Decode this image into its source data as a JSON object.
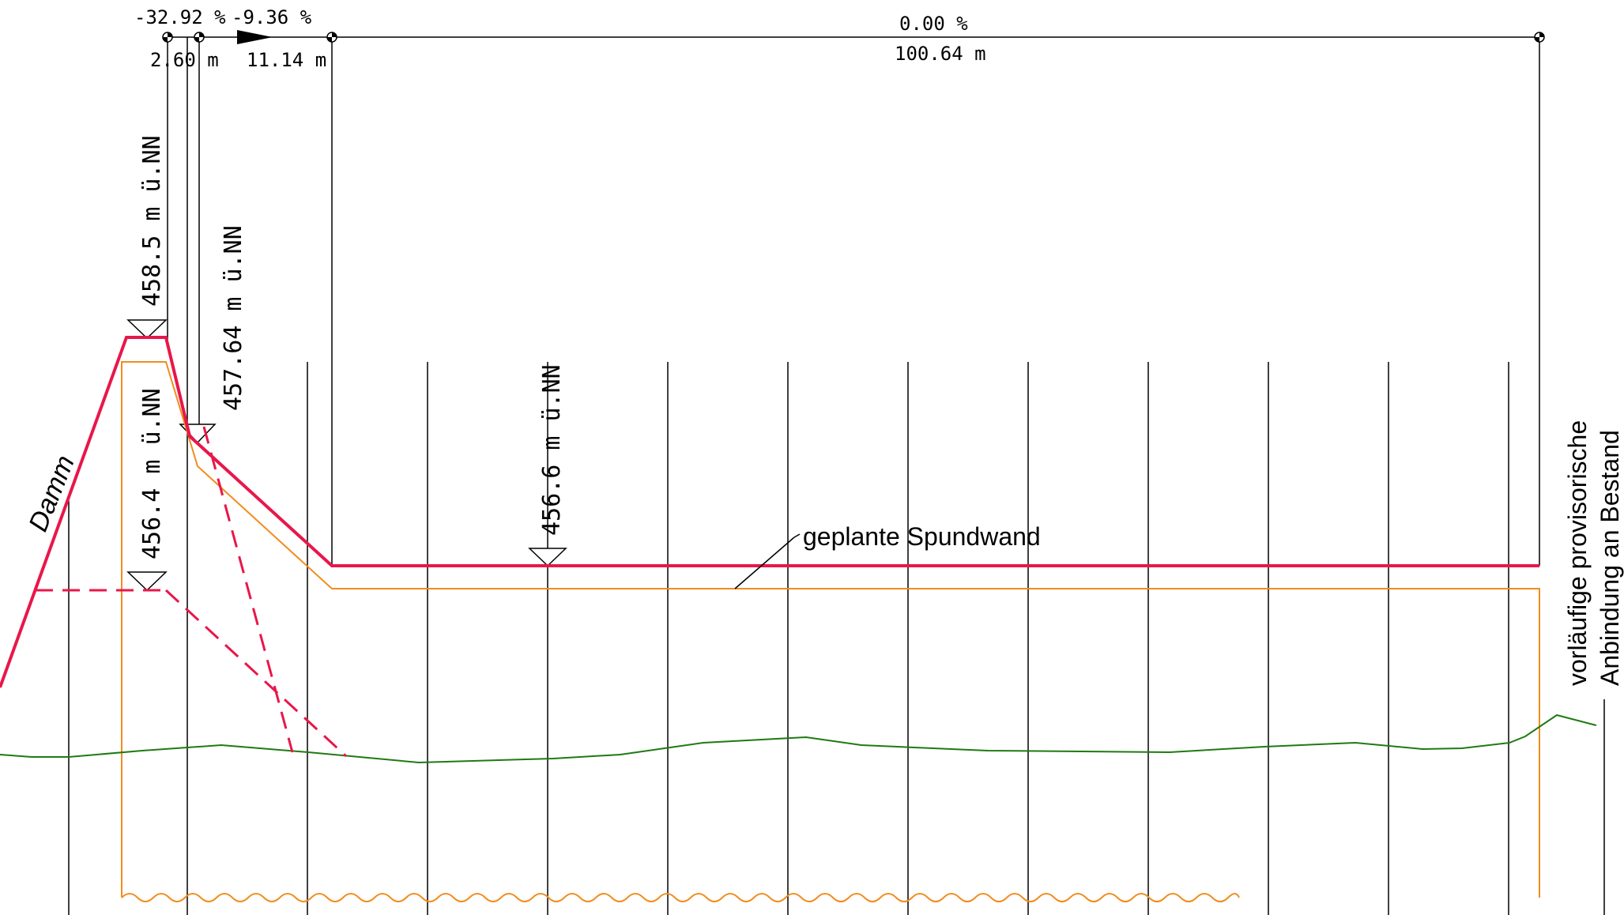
{
  "slopes": {
    "s1": "-32.92 %",
    "s2": "-9.36 %",
    "s3": "0.00 %"
  },
  "segment_lengths": {
    "l1": "2.60 m",
    "l2": "11.14 m",
    "l3": "100.64 m"
  },
  "elevations": {
    "e1": "458.5 m ü.NN",
    "e2": "457.64 m ü.NN",
    "e3": "456.4 m ü.NN",
    "e4": "456.6 m ü.NN"
  },
  "labels": {
    "damm": "Damm",
    "spundwand": "geplante Spundwand",
    "anbindung_line1": "vorläufige provisorische",
    "anbindung_line2": "Anbindung an Bestand"
  },
  "colors": {
    "crest_line": "#e8174a",
    "spundwand_line": "#f28c1e",
    "terrain_line": "#1f7a12",
    "construction_lines": "#000000"
  }
}
